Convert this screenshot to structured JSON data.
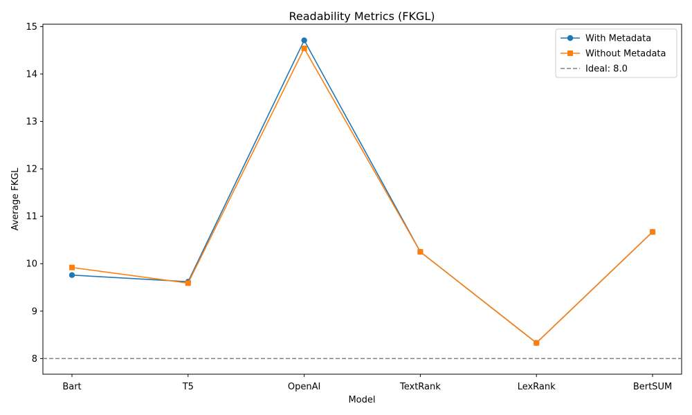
{
  "chart_data": {
    "type": "line",
    "title": "Readability Metrics (FKGL)",
    "xlabel": "Model",
    "ylabel": "Average FKGL",
    "categories": [
      "Bart",
      "T5",
      "OpenAI",
      "TextRank",
      "LexRank",
      "BertSUM"
    ],
    "ylim": [
      7.67,
      15.05
    ],
    "yticks": [
      8,
      9,
      10,
      11,
      12,
      13,
      14,
      15
    ],
    "ytick_labels": [
      "8",
      "9",
      "10",
      "11",
      "12",
      "13",
      "14",
      "15"
    ],
    "series": [
      {
        "name": "With Metadata",
        "color": "#1f77b4",
        "marker": "circle",
        "values": [
          9.76,
          9.62,
          14.71,
          10.25,
          8.33,
          10.67
        ]
      },
      {
        "name": "Without Metadata",
        "color": "#ff7f0e",
        "marker": "square",
        "values": [
          9.92,
          9.59,
          14.54,
          10.25,
          8.33,
          10.67
        ]
      }
    ],
    "reference_line": {
      "label": "Ideal: 8.0",
      "value": 8.0,
      "color": "#808080",
      "style": "dashed"
    },
    "legend_position": "top-right",
    "grid": false
  }
}
